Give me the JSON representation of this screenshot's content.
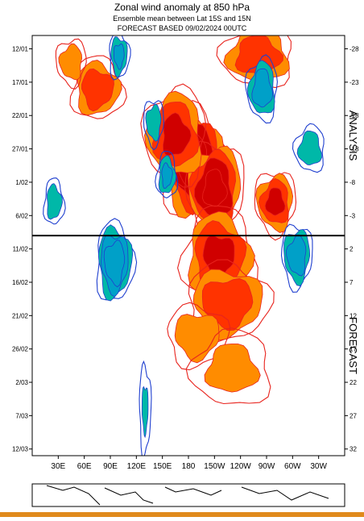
{
  "chart_data": {
    "type": "heatmap",
    "title": "Zonal wind anomaly at 850 hPa",
    "subtitle": "Ensemble mean between  Lat 15S and 15N",
    "subtitle2": "FORECAST  BASED 09/02/2024 00UTC",
    "x_tick_labels": [
      "30E",
      "60E",
      "90E",
      "120E",
      "150E",
      "180",
      "150W",
      "120W",
      "90W",
      "60W",
      "30W"
    ],
    "x_tick_lon_east": [
      30,
      60,
      90,
      120,
      150,
      180,
      210,
      240,
      270,
      300,
      330
    ],
    "xlim_lon_east": [
      0,
      360
    ],
    "y_tick_labels_left": [
      "12/01",
      "17/01",
      "22/01",
      "27/01",
      "1/02",
      "6/02",
      "11/02",
      "16/02",
      "21/02",
      "26/02",
      "2/03",
      "7/03",
      "12/03"
    ],
    "y_tick_labels_right": [
      "-28",
      "-23",
      "-18",
      "-13",
      "-8",
      "-3",
      "2",
      "7",
      "12",
      "17",
      "22",
      "27",
      "32"
    ],
    "ylim_day_index": [
      -30,
      33
    ],
    "y_tick_day_index": [
      -28,
      -23,
      -18,
      -13,
      -8,
      -3,
      2,
      7,
      12,
      17,
      22,
      27,
      32
    ],
    "forecast_start_day_index": 0,
    "side_label_top": "ANALYSIS",
    "side_label_bottom": "FORECAST",
    "colors": {
      "westerly_outline": "#e8231d",
      "westerly_1": "#ffd700",
      "westerly_2": "#ff8c00",
      "westerly_3": "#ff3300",
      "westerly_4": "#d00000",
      "easterly_outline": "#1f3fcf",
      "easterly_1": "#00c040",
      "easterly_2": "#00b8a8",
      "easterly_3": "#00a0c8"
    },
    "westerly_anomalies": [
      {
        "lon": 185,
        "day": -11,
        "amp": 5,
        "lon_w": 30,
        "day_w": 7
      },
      {
        "lon": 210,
        "day": -7,
        "amp": 4.5,
        "lon_w": 28,
        "day_w": 6
      },
      {
        "lon": 165,
        "day": -15,
        "amp": 3.5,
        "lon_w": 30,
        "day_w": 6
      },
      {
        "lon": 215,
        "day": 3,
        "amp": 3.5,
        "lon_w": 35,
        "day_w": 6
      },
      {
        "lon": 225,
        "day": 10,
        "amp": 3,
        "lon_w": 40,
        "day_w": 5
      },
      {
        "lon": 280,
        "day": -5,
        "amp": 3.5,
        "lon_w": 20,
        "day_w": 4
      },
      {
        "lon": 260,
        "day": -27,
        "amp": 3,
        "lon_w": 35,
        "day_w": 4
      },
      {
        "lon": 75,
        "day": -22,
        "amp": 3,
        "lon_w": 25,
        "day_w": 4
      },
      {
        "lon": 190,
        "day": 15,
        "amp": 2,
        "lon_w": 30,
        "day_w": 4
      },
      {
        "lon": 45,
        "day": -26,
        "amp": 2,
        "lon_w": 15,
        "day_w": 3
      },
      {
        "lon": 230,
        "day": 20,
        "amp": 1.5,
        "lon_w": 40,
        "day_w": 5
      }
    ],
    "easterly_anomalies": [
      {
        "lon": 95,
        "day": 4,
        "amp": 4,
        "lon_w": 18,
        "day_w": 5
      },
      {
        "lon": 305,
        "day": 3,
        "amp": 3,
        "lon_w": 15,
        "day_w": 4
      },
      {
        "lon": 265,
        "day": -22,
        "amp": 3,
        "lon_w": 15,
        "day_w": 4
      },
      {
        "lon": 155,
        "day": -9,
        "amp": 2.5,
        "lon_w": 10,
        "day_w": 3
      },
      {
        "lon": 100,
        "day": -27,
        "amp": 2.5,
        "lon_w": 10,
        "day_w": 3
      },
      {
        "lon": 140,
        "day": -17,
        "amp": 2,
        "lon_w": 10,
        "day_w": 3
      },
      {
        "lon": 320,
        "day": -13,
        "amp": 2,
        "lon_w": 15,
        "day_w": 3
      },
      {
        "lon": 25,
        "day": -5,
        "amp": 2,
        "lon_w": 10,
        "day_w": 3
      },
      {
        "lon": 130,
        "day": 26,
        "amp": 1.2,
        "lon_w": 6,
        "day_w": 6
      }
    ],
    "contour_levels": [
      1,
      2,
      3,
      4,
      5
    ],
    "grid": false
  }
}
